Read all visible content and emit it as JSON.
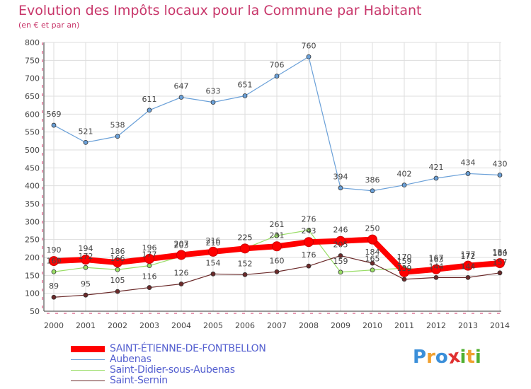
{
  "title": "Evolution des Impôts locaux pour la Commune par Habitant",
  "subtitle": "(en € et par an)",
  "logo": {
    "letters": [
      "P",
      "r",
      "o",
      "x",
      "i",
      "t",
      "i"
    ],
    "colors": [
      "#3b8fd9",
      "#f0a030",
      "#3b8fd9",
      "#e03030",
      "#50b030",
      "#f0a030",
      "#50b030"
    ]
  },
  "chart_data": {
    "type": "line",
    "x": [
      2000,
      2001,
      2002,
      2003,
      2004,
      2005,
      2006,
      2007,
      2008,
      2009,
      2010,
      2011,
      2012,
      2013,
      2014
    ],
    "ylim": [
      50,
      800
    ],
    "yticks": [
      50,
      100,
      150,
      200,
      250,
      300,
      350,
      400,
      450,
      500,
      550,
      600,
      650,
      700,
      750,
      800
    ],
    "grid": true,
    "legend_position": "bottom",
    "series": [
      {
        "name": "SAINT-ÉTIENNE-DE-FONTBELLON",
        "color": "#ff0000",
        "values": [
          190,
          194,
          186,
          196,
          207,
          216,
          225,
          231,
          243,
          246,
          250,
          159,
          167,
          177,
          184
        ]
      },
      {
        "name": "Aubenas",
        "color": "#6aa0d8",
        "values": [
          569,
          521,
          538,
          611,
          647,
          633,
          651,
          706,
          760,
          394,
          386,
          402,
          421,
          434,
          430
        ]
      },
      {
        "name": "Saint-Didier-sous-Aubenas",
        "color": "#99dd66",
        "values": [
          160,
          172,
          166,
          177,
          203,
          210,
          225,
          261,
          276,
          159,
          165,
          170,
          163,
          172,
          180
        ]
      },
      {
        "name": "Saint-Sernin",
        "color": "#6b2a2a",
        "values": [
          89,
          95,
          105,
          116,
          126,
          154,
          152,
          160,
          176,
          205,
          184,
          139,
          144,
          144,
          157
        ]
      }
    ]
  }
}
